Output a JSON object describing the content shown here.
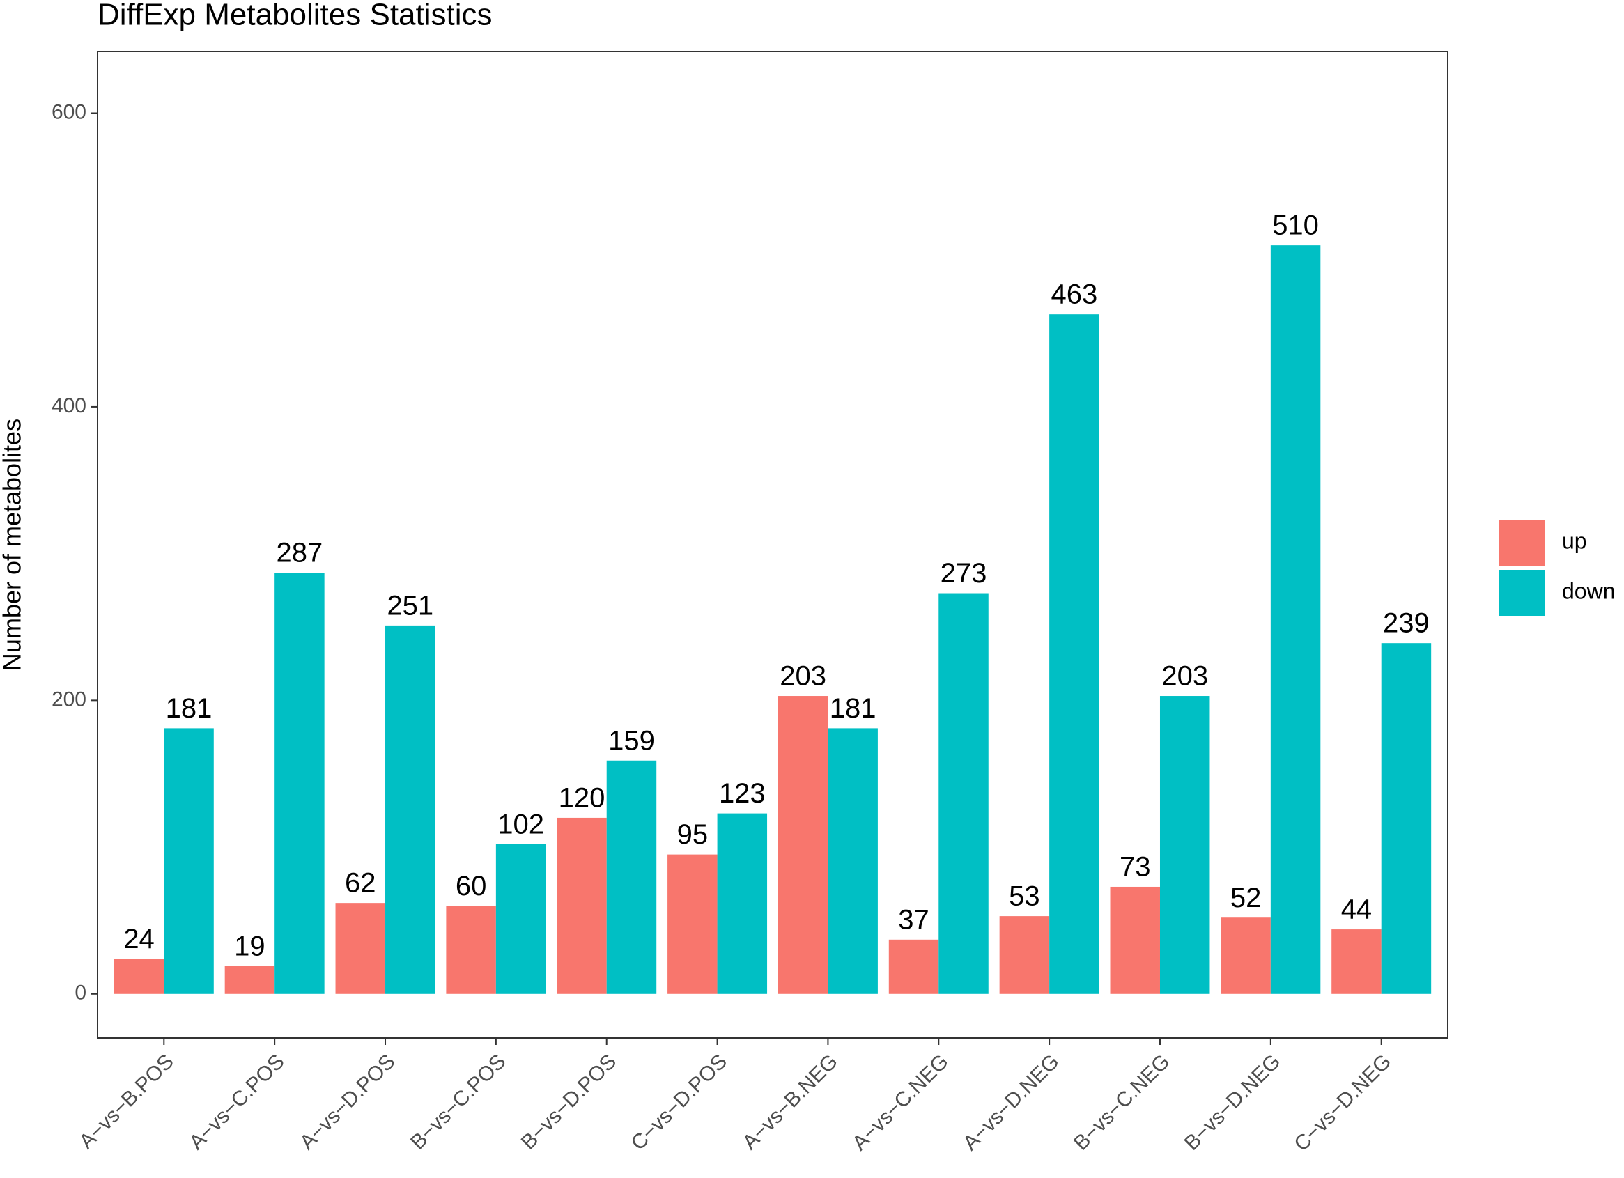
{
  "chart_data": {
    "type": "bar",
    "title": "DiffExp Metabolites Statistics",
    "y_label": "Number of metabolites",
    "categories": [
      "A−vs−B.POS",
      "A−vs−C.POS",
      "A−vs−D.POS",
      "B−vs−C.POS",
      "B−vs−D.POS",
      "C−vs−D.POS",
      "A−vs−B.NEG",
      "A−vs−C.NEG",
      "A−vs−D.NEG",
      "B−vs−C.NEG",
      "B−vs−D.NEG",
      "C−vs−D.NEG"
    ],
    "series": [
      {
        "name": "up",
        "color": "#F8766D",
        "values": [
          24,
          19,
          62,
          60,
          120,
          95,
          203,
          37,
          53,
          73,
          52,
          44
        ]
      },
      {
        "name": "down",
        "color": "#00BFC4",
        "values": [
          181,
          287,
          251,
          102,
          159,
          123,
          181,
          273,
          463,
          203,
          510,
          239
        ]
      }
    ],
    "ylim": [
      -30,
      642
    ],
    "yticks": [
      0,
      200,
      400,
      600
    ],
    "grid": false,
    "legend": "right"
  }
}
